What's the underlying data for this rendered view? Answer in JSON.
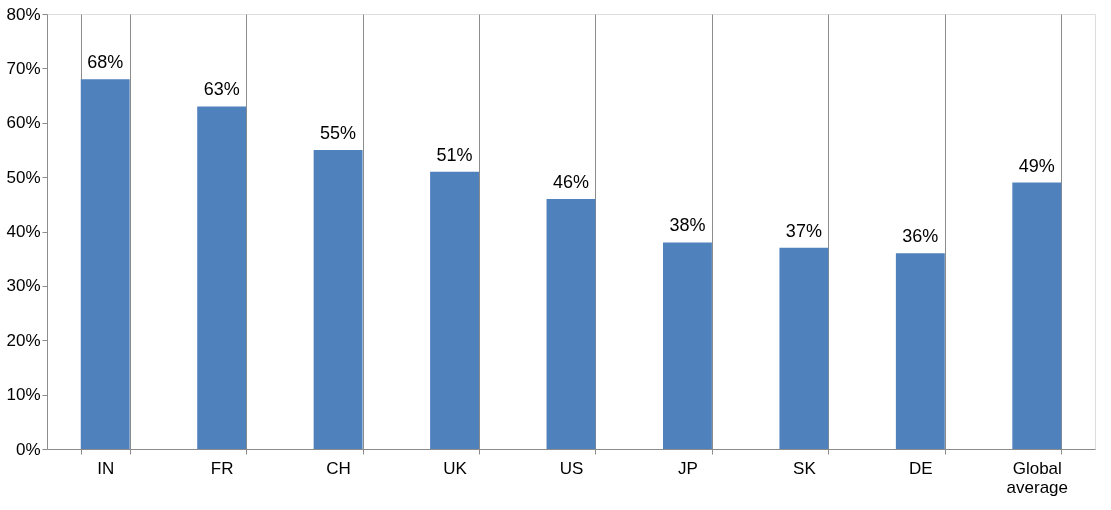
{
  "chart_data": {
    "type": "bar",
    "categories": [
      "IN",
      "FR",
      "CH",
      "UK",
      "US",
      "JP",
      "SK",
      "DE",
      "Global average"
    ],
    "values": [
      68,
      63,
      55,
      51,
      46,
      38,
      37,
      36,
      49
    ],
    "color": "#4f81bd",
    "ylim": [
      0,
      80
    ],
    "yticks": [
      {
        "value": 0,
        "label": "0%"
      },
      {
        "value": 10,
        "label": "10%"
      },
      {
        "value": 20,
        "label": "20%"
      },
      {
        "value": 30,
        "label": "30%"
      },
      {
        "value": 40,
        "label": "40%"
      },
      {
        "value": 50,
        "label": "50%"
      },
      {
        "value": 60,
        "label": "60%"
      },
      {
        "value": 70,
        "label": "70%"
      },
      {
        "value": 80,
        "label": "80%"
      }
    ],
    "data_labels": true,
    "value_labels": [
      "68%",
      "63%",
      "55%",
      "51%",
      "46%",
      "38%",
      "37%",
      "36%",
      "49%"
    ],
    "grid": "x"
  }
}
